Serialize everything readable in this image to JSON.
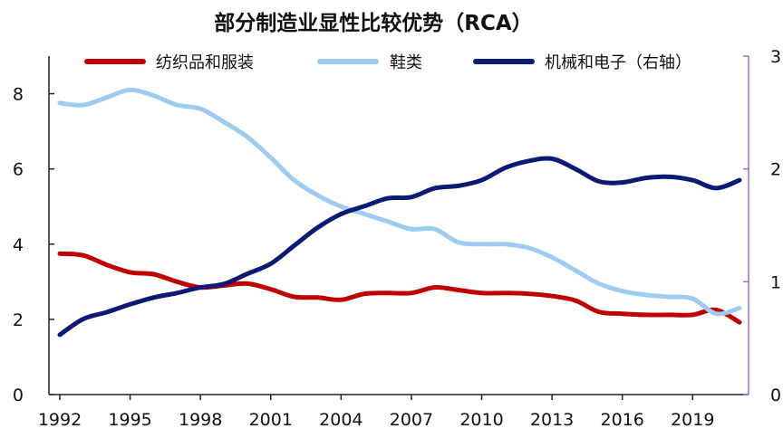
{
  "chart_data": {
    "type": "line",
    "title": "部分制造业显性比较优势（RCA）",
    "x_ticks": [
      "1992",
      "1995",
      "1998",
      "2001",
      "2004",
      "2007",
      "2010",
      "2013",
      "2016",
      "2019"
    ],
    "x_range": [
      1992,
      2021
    ],
    "y_left": {
      "range": [
        0,
        9
      ],
      "ticks": [
        "0",
        "2",
        "4",
        "6",
        "8"
      ],
      "tick_values": [
        0,
        2,
        4,
        6,
        8
      ]
    },
    "y_right": {
      "range": [
        0,
        3
      ],
      "ticks": [
        "0",
        "1",
        "2",
        "3"
      ],
      "tick_values": [
        0,
        1,
        2,
        3
      ]
    },
    "grid": false,
    "legend_position": "top",
    "series": [
      {
        "name": "纺织品和服装",
        "axis": "left",
        "color": "#c00000",
        "x": [
          1992,
          1993,
          1994,
          1995,
          1996,
          1997,
          1998,
          1999,
          2000,
          2001,
          2002,
          2003,
          2004,
          2005,
          2006,
          2007,
          2008,
          2009,
          2010,
          2011,
          2012,
          2013,
          2014,
          2015,
          2016,
          2017,
          2018,
          2019,
          2020,
          2021
        ],
        "values": [
          3.75,
          3.7,
          3.45,
          3.25,
          3.2,
          3.0,
          2.85,
          2.9,
          2.95,
          2.8,
          2.6,
          2.58,
          2.52,
          2.68,
          2.7,
          2.7,
          2.85,
          2.78,
          2.7,
          2.7,
          2.68,
          2.62,
          2.5,
          2.2,
          2.15,
          2.12,
          2.12,
          2.12,
          2.25,
          1.92
        ]
      },
      {
        "name": "鞋类",
        "axis": "left",
        "color": "#9dcbf2",
        "x": [
          1992,
          1993,
          1994,
          1995,
          1996,
          1997,
          1998,
          1999,
          2000,
          2001,
          2002,
          2003,
          2004,
          2005,
          2006,
          2007,
          2008,
          2009,
          2010,
          2011,
          2012,
          2013,
          2014,
          2015,
          2016,
          2017,
          2018,
          2019,
          2020,
          2021
        ],
        "values": [
          7.75,
          7.7,
          7.9,
          8.1,
          7.95,
          7.7,
          7.6,
          7.25,
          6.85,
          6.3,
          5.7,
          5.3,
          5.0,
          4.8,
          4.6,
          4.4,
          4.4,
          4.05,
          4.0,
          4.0,
          3.9,
          3.65,
          3.3,
          2.95,
          2.75,
          2.65,
          2.6,
          2.55,
          2.15,
          2.3
        ]
      },
      {
        "name": "机械和电子（右轴）",
        "axis": "right",
        "color": "#0c1a73",
        "x": [
          1992,
          1993,
          1994,
          1995,
          1996,
          1997,
          1998,
          1999,
          2000,
          2001,
          2002,
          2003,
          2004,
          2005,
          2006,
          2007,
          2008,
          2009,
          2010,
          2011,
          2012,
          2013,
          2014,
          2015,
          2016,
          2017,
          2018,
          2019,
          2020,
          2021
        ],
        "values": [
          0.53,
          0.67,
          0.73,
          0.8,
          0.86,
          0.9,
          0.95,
          0.98,
          1.07,
          1.16,
          1.32,
          1.48,
          1.6,
          1.67,
          1.74,
          1.75,
          1.83,
          1.85,
          1.9,
          2.01,
          2.07,
          2.09,
          2.0,
          1.89,
          1.88,
          1.92,
          1.93,
          1.9,
          1.83,
          1.9
        ]
      }
    ]
  }
}
